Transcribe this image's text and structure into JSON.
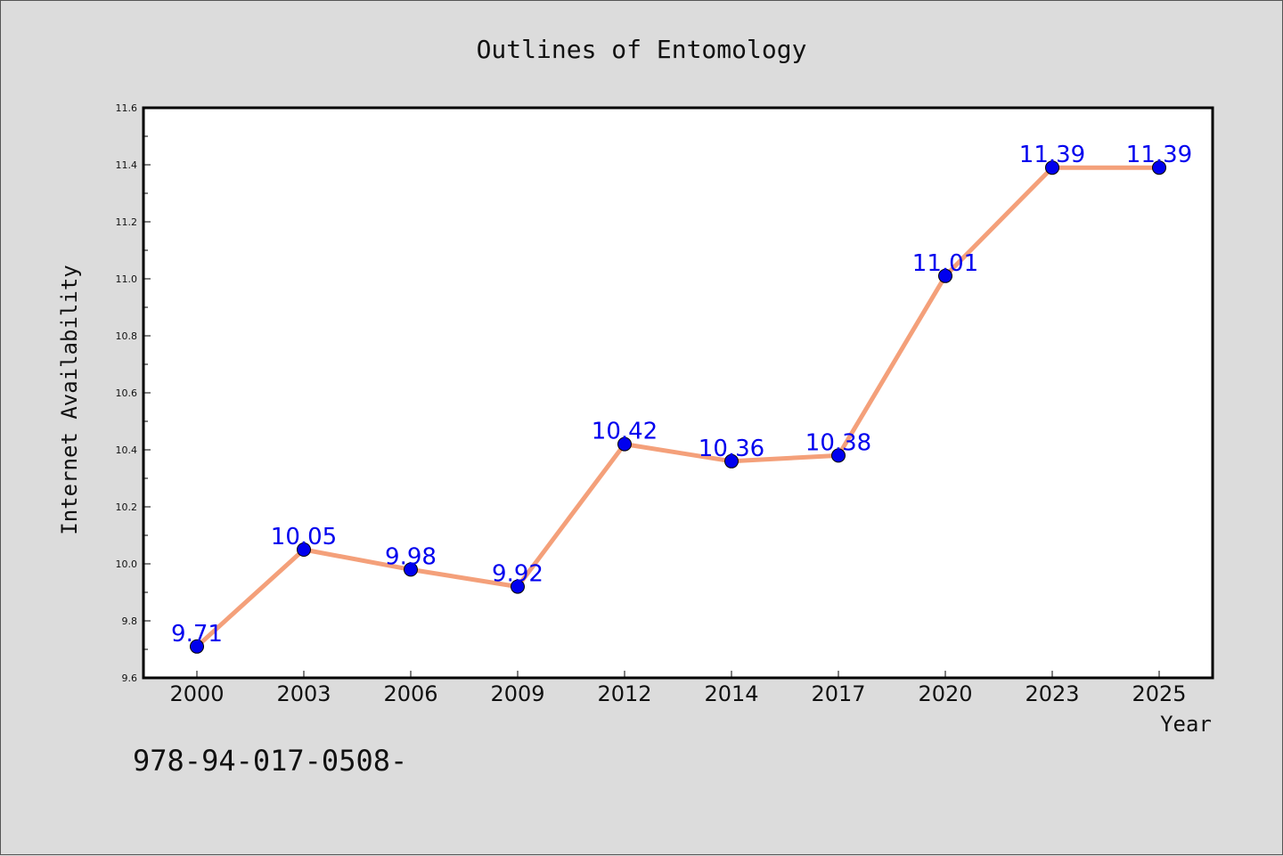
{
  "chart_data": {
    "type": "line",
    "title": "Outlines of Entomology",
    "xlabel": "Year",
    "ylabel": "Internet Availability",
    "categories": [
      "2000",
      "2003",
      "2006",
      "2009",
      "2012",
      "2014",
      "2017",
      "2020",
      "2023",
      "2025"
    ],
    "values": [
      9.71,
      10.05,
      9.98,
      9.92,
      10.42,
      10.36,
      10.38,
      11.01,
      11.39,
      11.39
    ],
    "data_labels": [
      "9.71",
      "10.05",
      "9.98",
      "9.92",
      "10.42",
      "10.36",
      "10.38",
      "11.01",
      "11.39",
      "11.39"
    ],
    "ylim": [
      9.6,
      11.6
    ],
    "yticks": [
      "9.6",
      "9.8",
      "10.0",
      "10.2",
      "10.4",
      "10.6",
      "10.8",
      "11.0",
      "11.2",
      "11.4",
      "11.6"
    ],
    "grid": false,
    "legend": "none",
    "line_color": "#f4a07a",
    "marker_color": "#0000ee",
    "label_color": "#0000ee"
  },
  "footnote": "978-94-017-0508-"
}
